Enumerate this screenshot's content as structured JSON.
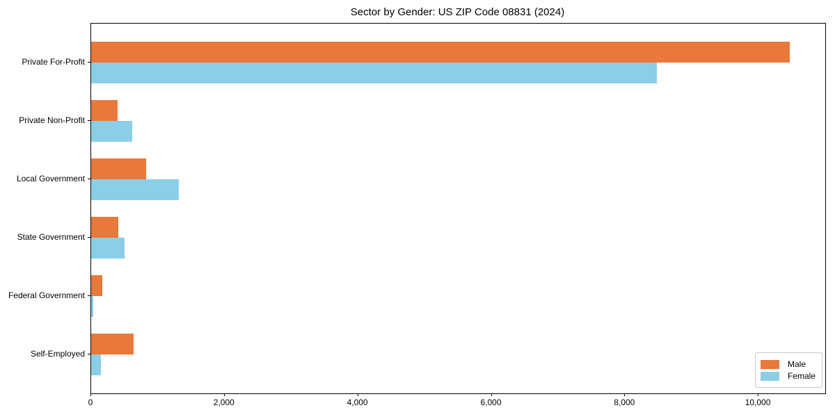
{
  "chart_data": {
    "type": "bar",
    "orientation": "horizontal",
    "title": "Sector by Gender: US ZIP Code 08831 (2024)",
    "categories": [
      "Private For-Profit",
      "Private Non-Profit",
      "Local Government",
      "State Government",
      "Federal Government",
      "Self-Employed"
    ],
    "series": [
      {
        "name": "Male",
        "color": "#e8783b",
        "values": [
          10470,
          400,
          820,
          410,
          170,
          640
        ]
      },
      {
        "name": "Female",
        "color": "#8bcee8",
        "values": [
          8480,
          610,
          1310,
          500,
          30,
          150
        ]
      }
    ],
    "xlabel": "",
    "ylabel": "",
    "xlim": [
      0,
      11000
    ],
    "x_ticks": [
      {
        "value": 0,
        "label": "0"
      },
      {
        "value": 2000,
        "label": "2,000"
      },
      {
        "value": 4000,
        "label": "4,000"
      },
      {
        "value": 6000,
        "label": "6,000"
      },
      {
        "value": 8000,
        "label": "8,000"
      },
      {
        "value": 10000,
        "label": "10,000"
      }
    ],
    "grid": false,
    "legend_position": "lower right",
    "legend_title": ""
  }
}
